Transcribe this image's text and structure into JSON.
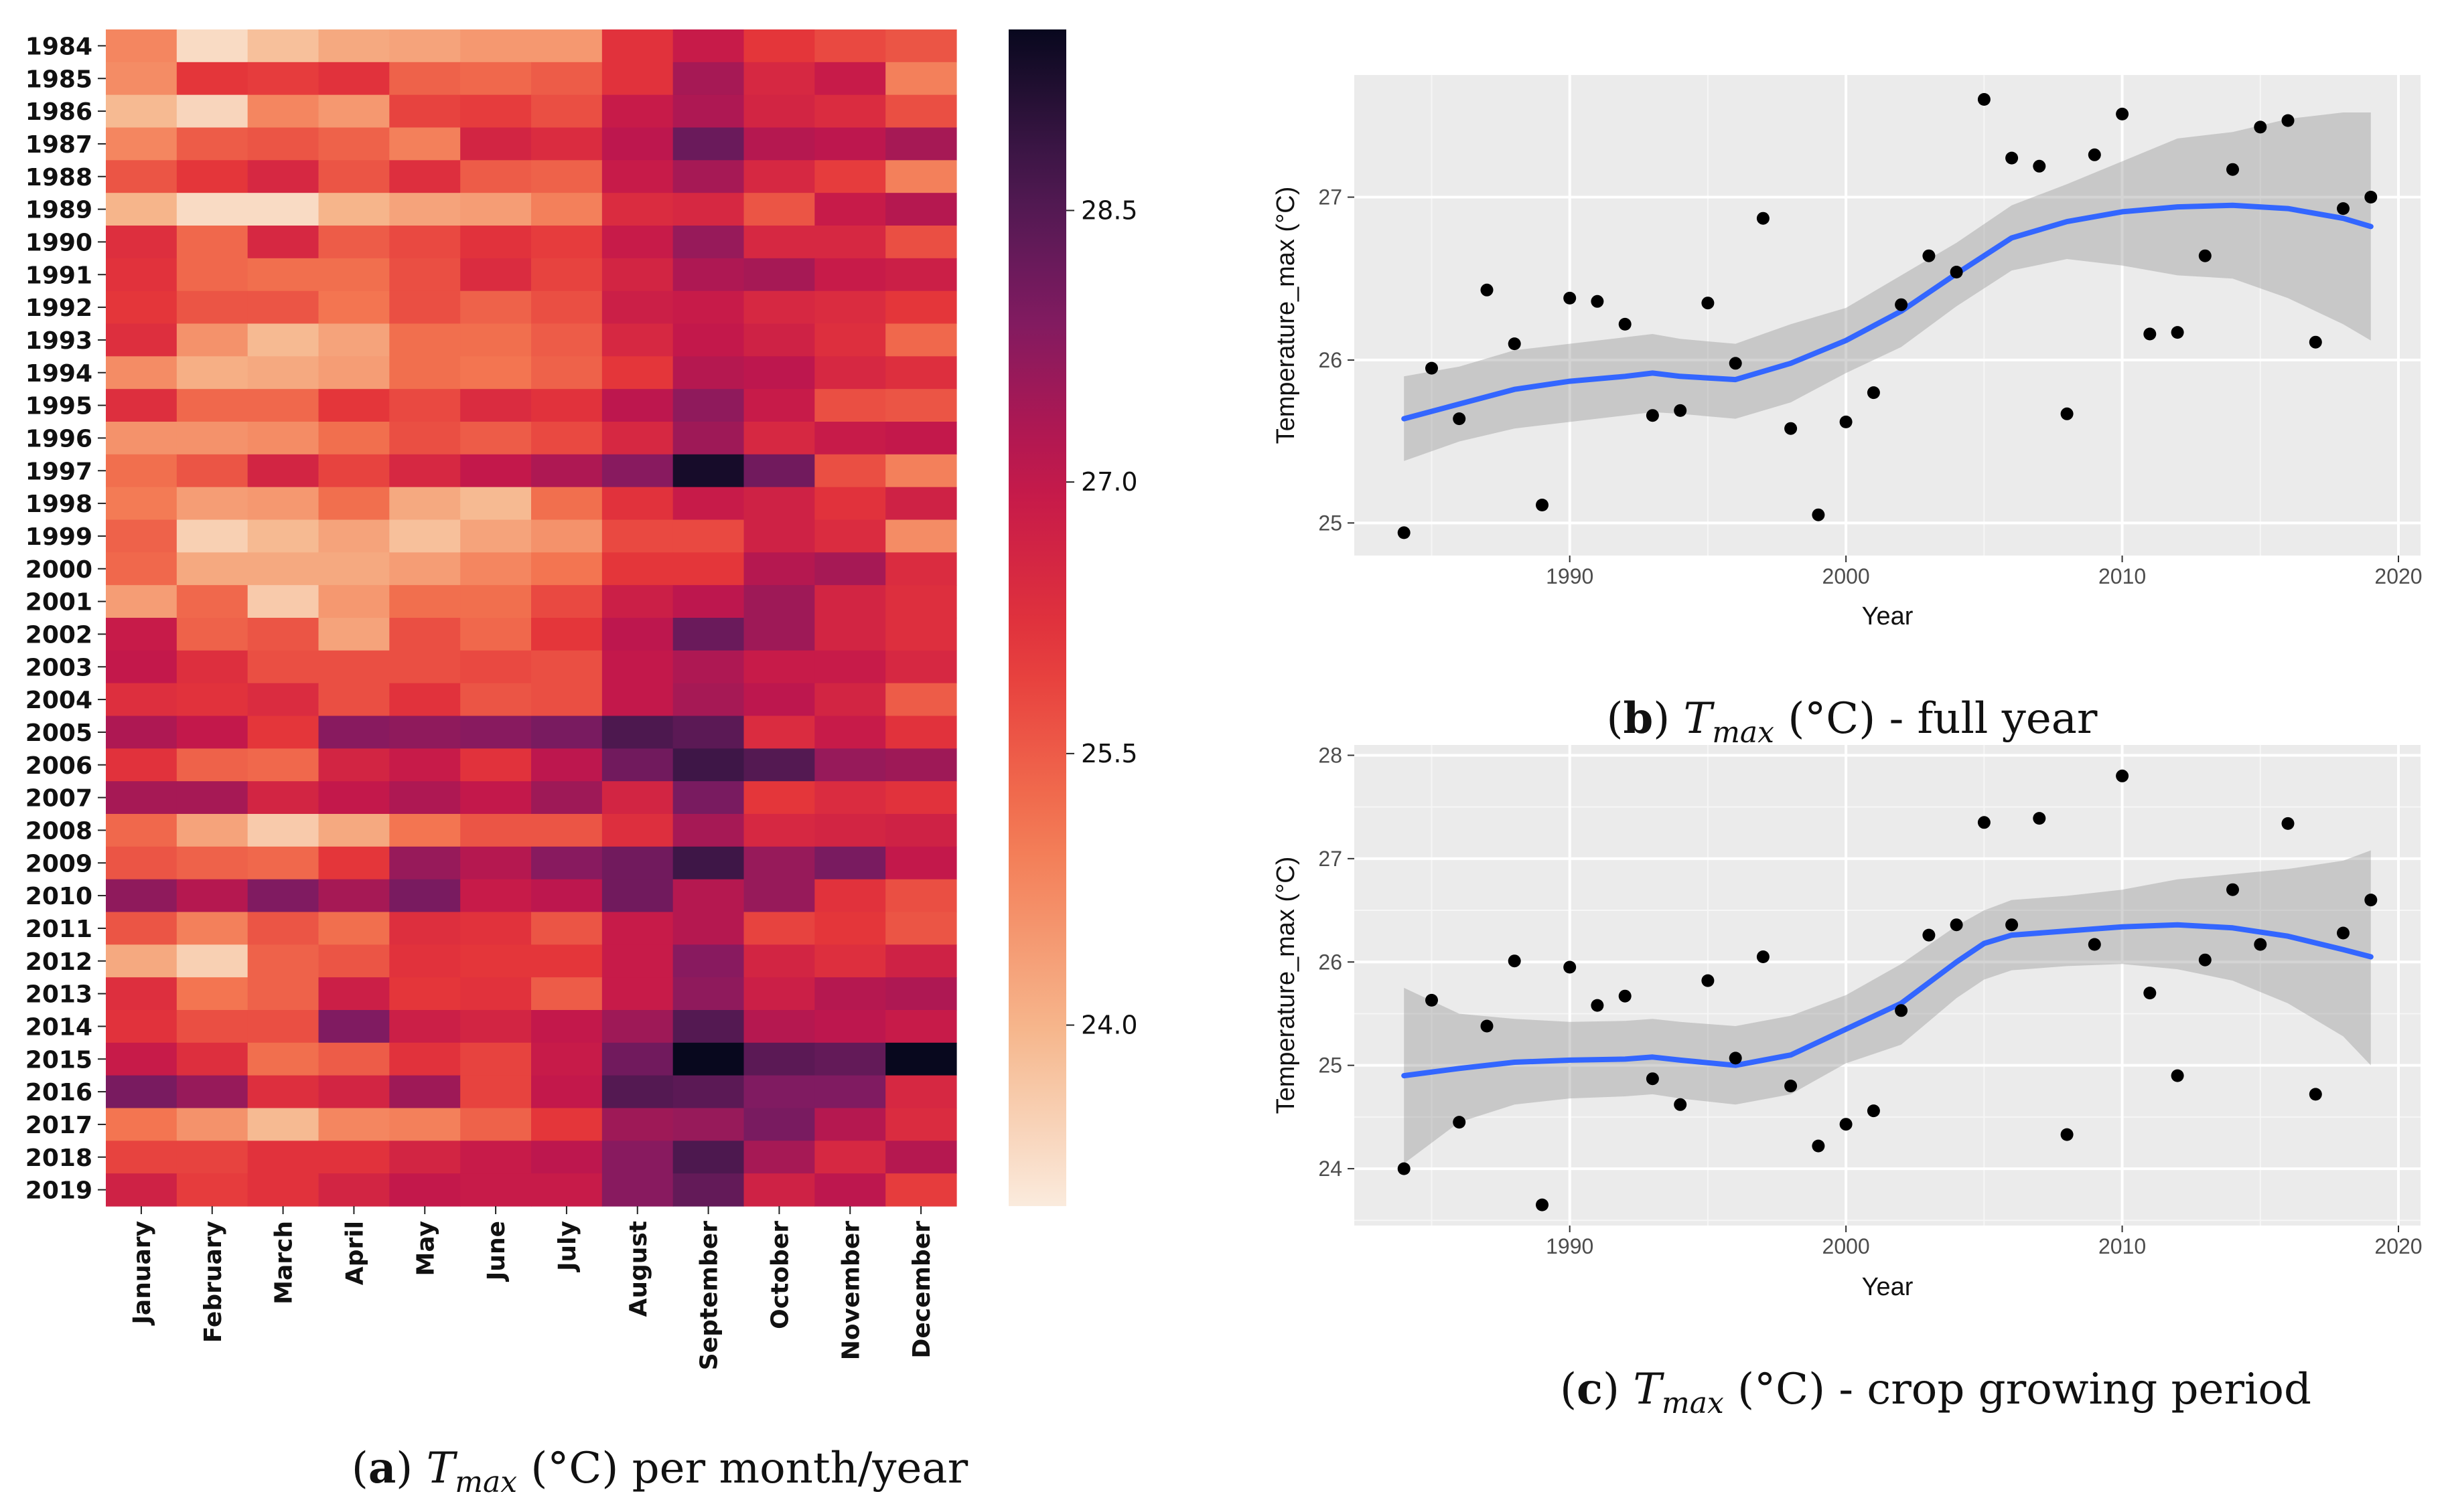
{
  "chart_data": [
    {
      "id": "a",
      "type": "heatmap",
      "title": "",
      "caption": {
        "label": "a",
        "text": " per month/year",
        "symbol": "T",
        "subscript": "max",
        "unit": "(°C)"
      },
      "xlabel": "",
      "ylabel": "",
      "rows": [
        "1984",
        "1985",
        "1986",
        "1987",
        "1988",
        "1989",
        "1990",
        "1991",
        "1992",
        "1993",
        "1994",
        "1995",
        "1996",
        "1997",
        "1998",
        "1999",
        "2000",
        "2001",
        "2002",
        "2003",
        "2004",
        "2005",
        "2006",
        "2007",
        "2008",
        "2009",
        "2010",
        "2011",
        "2012",
        "2013",
        "2014",
        "2015",
        "2016",
        "2017",
        "2018",
        "2019"
      ],
      "columns": [
        "January",
        "February",
        "March",
        "April",
        "May",
        "June",
        "July",
        "August",
        "September",
        "October",
        "November",
        "December"
      ],
      "values": [
        [
          24.8,
          23.3,
          23.8,
          24.2,
          24.3,
          24.5,
          24.5,
          26.2,
          26.9,
          26.1,
          25.8,
          25.6
        ],
        [
          24.7,
          26.1,
          26.0,
          26.2,
          25.4,
          25.3,
          25.5,
          26.2,
          27.4,
          26.5,
          26.9,
          24.9
        ],
        [
          23.9,
          23.4,
          24.8,
          24.5,
          25.9,
          26.0,
          25.7,
          26.9,
          27.3,
          26.6,
          26.4,
          25.7
        ],
        [
          24.8,
          25.5,
          25.6,
          25.4,
          24.9,
          26.6,
          26.4,
          27.1,
          28.2,
          27.2,
          27.1,
          27.4
        ],
        [
          25.6,
          26.1,
          26.5,
          25.6,
          26.3,
          25.5,
          25.4,
          26.9,
          27.4,
          26.5,
          26.0,
          24.9
        ],
        [
          24.0,
          23.3,
          23.3,
          24.0,
          24.3,
          24.4,
          24.9,
          26.4,
          26.5,
          25.6,
          26.9,
          27.2
        ],
        [
          26.3,
          25.3,
          26.5,
          25.5,
          25.8,
          26.2,
          26.0,
          26.9,
          27.6,
          26.5,
          26.5,
          25.7
        ],
        [
          26.2,
          25.3,
          25.2,
          25.2,
          25.7,
          26.4,
          25.9,
          26.6,
          27.3,
          27.4,
          26.9,
          26.8
        ],
        [
          26.1,
          25.6,
          25.6,
          25.1,
          25.7,
          25.4,
          25.7,
          26.8,
          26.9,
          26.5,
          26.4,
          26.1
        ],
        [
          26.3,
          24.6,
          23.9,
          24.3,
          25.2,
          25.2,
          25.5,
          26.5,
          27.0,
          26.7,
          26.3,
          25.3
        ],
        [
          24.7,
          24.1,
          24.2,
          24.4,
          25.2,
          25.1,
          25.4,
          26.1,
          27.2,
          27.1,
          26.5,
          26.3
        ],
        [
          26.3,
          25.3,
          25.3,
          26.1,
          25.8,
          26.4,
          26.2,
          27.1,
          27.7,
          26.9,
          25.7,
          25.6
        ],
        [
          24.6,
          24.6,
          24.7,
          25.2,
          25.7,
          25.5,
          25.8,
          26.5,
          27.5,
          26.5,
          26.9,
          27.0
        ],
        [
          25.2,
          25.6,
          26.6,
          25.9,
          26.5,
          27.0,
          27.3,
          27.8,
          29.3,
          28.1,
          25.7,
          24.9
        ],
        [
          25.0,
          24.4,
          24.5,
          25.2,
          24.2,
          23.9,
          25.2,
          26.2,
          26.9,
          26.7,
          26.2,
          26.7
        ],
        [
          25.4,
          23.5,
          23.9,
          24.3,
          23.8,
          24.3,
          24.6,
          25.8,
          25.8,
          26.7,
          26.4,
          24.7
        ],
        [
          25.3,
          24.2,
          24.2,
          24.2,
          24.4,
          24.8,
          25.1,
          26.1,
          26.1,
          27.2,
          27.4,
          26.4
        ],
        [
          24.4,
          25.3,
          23.6,
          24.5,
          25.2,
          25.2,
          25.8,
          26.8,
          27.1,
          27.5,
          26.6,
          26.3
        ],
        [
          26.9,
          25.4,
          25.6,
          24.3,
          25.7,
          25.3,
          26.1,
          27.1,
          28.2,
          27.5,
          26.6,
          26.3
        ],
        [
          27.0,
          26.3,
          25.7,
          25.7,
          25.7,
          25.8,
          25.7,
          27.0,
          27.3,
          26.9,
          26.9,
          26.5
        ],
        [
          26.3,
          26.2,
          26.4,
          25.7,
          26.2,
          25.6,
          25.7,
          27.0,
          27.4,
          27.1,
          26.6,
          25.5
        ],
        [
          27.3,
          27.0,
          26.1,
          27.8,
          27.7,
          27.8,
          28.0,
          28.6,
          28.4,
          26.4,
          26.9,
          26.2
        ],
        [
          26.2,
          25.4,
          25.3,
          26.6,
          26.9,
          26.2,
          27.1,
          28.1,
          28.8,
          28.5,
          27.6,
          27.5
        ],
        [
          27.4,
          27.4,
          26.6,
          27.0,
          27.3,
          27.0,
          27.5,
          26.6,
          28.0,
          26.1,
          26.4,
          26.2
        ],
        [
          25.3,
          24.3,
          23.6,
          24.2,
          25.1,
          25.6,
          25.6,
          26.3,
          27.4,
          26.5,
          26.6,
          26.7
        ],
        [
          25.6,
          25.4,
          25.3,
          26.1,
          27.6,
          27.2,
          27.8,
          28.1,
          28.8,
          27.6,
          28.0,
          27.0
        ],
        [
          27.7,
          27.2,
          27.9,
          27.4,
          28.0,
          26.9,
          27.1,
          28.1,
          27.2,
          27.6,
          26.2,
          25.7
        ],
        [
          25.6,
          24.9,
          25.6,
          25.2,
          26.3,
          26.2,
          25.6,
          26.9,
          27.2,
          25.9,
          26.1,
          25.6
        ],
        [
          24.2,
          23.5,
          25.4,
          25.6,
          26.2,
          26.1,
          26.1,
          26.9,
          27.8,
          26.6,
          26.3,
          26.7
        ],
        [
          26.3,
          25.1,
          25.4,
          26.8,
          26.1,
          26.2,
          25.5,
          26.9,
          27.7,
          26.8,
          27.2,
          27.3
        ],
        [
          26.2,
          25.7,
          25.7,
          27.9,
          26.8,
          26.6,
          27.0,
          27.5,
          28.5,
          27.2,
          27.1,
          26.9
        ],
        [
          26.9,
          26.3,
          25.2,
          25.5,
          26.2,
          25.9,
          26.9,
          28.1,
          29.5,
          28.4,
          28.3,
          29.5
        ],
        [
          28.0,
          27.6,
          26.3,
          26.6,
          27.5,
          25.9,
          27.0,
          28.5,
          28.4,
          27.9,
          27.9,
          26.5
        ],
        [
          25.1,
          24.6,
          23.9,
          24.8,
          24.9,
          25.4,
          26.1,
          27.5,
          27.6,
          28.0,
          27.2,
          26.4
        ],
        [
          25.9,
          25.9,
          26.2,
          26.2,
          26.6,
          26.9,
          27.1,
          27.8,
          28.6,
          27.4,
          26.5,
          27.2
        ],
        [
          26.7,
          26.0,
          26.2,
          26.6,
          27.0,
          26.9,
          26.9,
          27.8,
          28.3,
          26.7,
          27.1,
          26.0
        ]
      ],
      "colorbar": {
        "label": "",
        "ticks": [
          24.0,
          25.5,
          27.0,
          28.5
        ],
        "range": [
          23.0,
          29.5
        ]
      }
    },
    {
      "id": "b",
      "type": "scatter",
      "title": "",
      "caption": {
        "label": "b",
        "symbol": "T",
        "subscript": "max",
        "unit": "(°C)",
        "text": " - full year"
      },
      "xlabel": "Year",
      "ylabel": "Temperature_max (°C)",
      "xlim": [
        1982.2,
        2020.8
      ],
      "ylim": [
        24.8,
        27.75
      ],
      "xticks": [
        1990,
        2000,
        2010,
        2020
      ],
      "yticks": [
        25,
        26,
        27
      ],
      "x": [
        1984,
        1985,
        1986,
        1987,
        1988,
        1989,
        1990,
        1991,
        1992,
        1993,
        1994,
        1995,
        1996,
        1997,
        1998,
        1999,
        2000,
        2001,
        2002,
        2003,
        2004,
        2005,
        2006,
        2007,
        2008,
        2009,
        2010,
        2011,
        2012,
        2013,
        2014,
        2015,
        2016,
        2017,
        2018,
        2019
      ],
      "y": [
        24.94,
        25.95,
        25.64,
        26.43,
        26.1,
        25.11,
        26.38,
        26.36,
        26.22,
        25.66,
        25.69,
        26.35,
        25.98,
        26.87,
        25.58,
        25.05,
        25.62,
        25.8,
        26.34,
        26.64,
        26.54,
        27.6,
        27.24,
        27.19,
        25.67,
        27.26,
        27.51,
        26.16,
        26.17,
        26.64,
        27.17,
        27.43,
        27.47,
        26.11,
        26.93,
        27.0
      ],
      "trend": {
        "name": "smooth fit",
        "color": "#3366ff",
        "x": [
          1984,
          1986,
          1988,
          1990,
          1992,
          1993,
          1994,
          1996,
          1998,
          2000,
          2002,
          2004,
          2006,
          2008,
          2010,
          2012,
          2014,
          2016,
          2018,
          2019
        ],
        "y": [
          25.64,
          25.73,
          25.82,
          25.87,
          25.9,
          25.92,
          25.9,
          25.88,
          25.98,
          26.12,
          26.3,
          26.53,
          26.75,
          26.85,
          26.91,
          26.94,
          26.95,
          26.93,
          26.87,
          26.82
        ],
        "lower": [
          25.38,
          25.5,
          25.58,
          25.62,
          25.66,
          25.68,
          25.67,
          25.64,
          25.74,
          25.92,
          26.08,
          26.33,
          26.55,
          26.62,
          26.58,
          26.52,
          26.5,
          26.38,
          26.22,
          26.12
        ],
        "upper": [
          25.9,
          25.96,
          26.06,
          26.1,
          26.14,
          26.16,
          26.13,
          26.1,
          26.22,
          26.32,
          26.52,
          26.72,
          26.95,
          27.08,
          27.22,
          27.36,
          27.4,
          27.48,
          27.52,
          27.52
        ]
      }
    },
    {
      "id": "c",
      "type": "scatter",
      "title": "",
      "caption": {
        "label": "c",
        "symbol": "T",
        "subscript": "max",
        "unit": "(°C)",
        "text": " - crop growing period"
      },
      "xlabel": "Year",
      "ylabel": "Temperature_max (°C)",
      "xlim": [
        1982.2,
        2020.8
      ],
      "ylim": [
        23.45,
        28.1
      ],
      "xticks": [
        1990,
        2000,
        2010,
        2020
      ],
      "yticks": [
        24,
        25,
        26,
        27,
        28
      ],
      "x": [
        1984,
        1985,
        1986,
        1987,
        1988,
        1989,
        1990,
        1991,
        1992,
        1993,
        1994,
        1995,
        1996,
        1997,
        1998,
        1999,
        2000,
        2001,
        2002,
        2003,
        2004,
        2005,
        2006,
        2007,
        2008,
        2009,
        2010,
        2011,
        2012,
        2013,
        2014,
        2015,
        2016,
        2017,
        2018,
        2019
      ],
      "y": [
        24.0,
        25.63,
        24.45,
        25.38,
        26.01,
        23.65,
        25.95,
        25.58,
        25.67,
        24.87,
        24.62,
        25.82,
        25.07,
        26.05,
        24.8,
        24.22,
        24.43,
        24.56,
        25.53,
        26.26,
        26.36,
        27.35,
        26.36,
        27.39,
        24.33,
        26.17,
        27.8,
        25.7,
        24.9,
        26.02,
        26.7,
        26.17,
        27.34,
        24.72,
        26.28,
        26.6
      ],
      "trend": {
        "name": "smooth fit",
        "color": "#3366ff",
        "x": [
          1984,
          1986,
          1988,
          1990,
          1992,
          1993,
          1994,
          1996,
          1998,
          2000,
          2002,
          2004,
          2005,
          2006,
          2008,
          2010,
          2012,
          2014,
          2016,
          2018,
          2019
        ],
        "y": [
          24.9,
          24.97,
          25.03,
          25.05,
          25.06,
          25.08,
          25.05,
          25.0,
          25.1,
          25.35,
          25.6,
          26.0,
          26.18,
          26.26,
          26.3,
          26.34,
          26.36,
          26.33,
          26.25,
          26.12,
          26.05
        ],
        "lower": [
          24.05,
          24.45,
          24.62,
          24.68,
          24.7,
          24.72,
          24.68,
          24.62,
          24.72,
          25.02,
          25.2,
          25.65,
          25.83,
          25.92,
          25.96,
          25.98,
          25.93,
          25.82,
          25.6,
          25.28,
          25.0
        ],
        "upper": [
          25.75,
          25.5,
          25.45,
          25.42,
          25.43,
          25.45,
          25.42,
          25.38,
          25.48,
          25.68,
          25.98,
          26.35,
          26.5,
          26.6,
          26.64,
          26.7,
          26.8,
          26.85,
          26.9,
          26.98,
          27.08
        ]
      }
    }
  ]
}
